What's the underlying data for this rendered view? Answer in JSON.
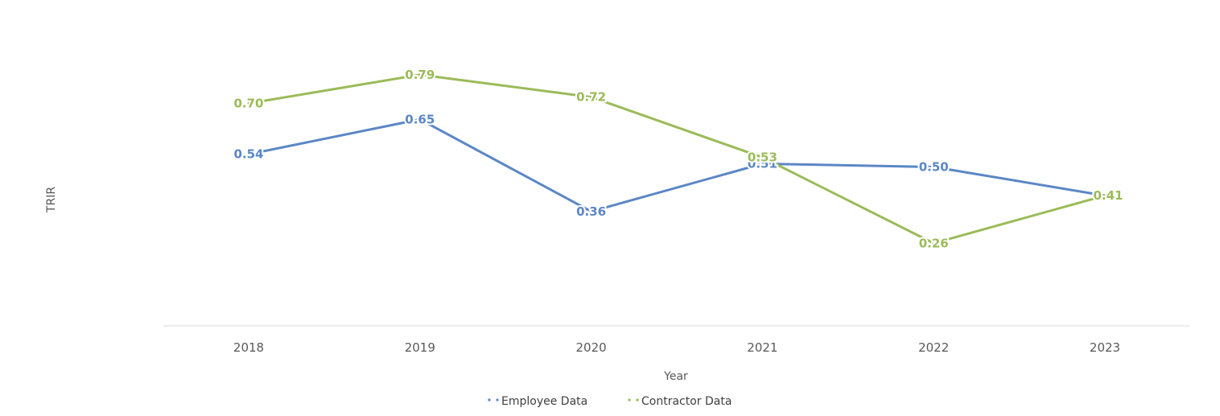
{
  "chart_data": {
    "type": "line",
    "title": "",
    "xlabel": "Year",
    "ylabel": "TRIR",
    "categories": [
      "2018",
      "2019",
      "2020",
      "2021",
      "2022",
      "2023"
    ],
    "ylim": [
      0,
      1
    ],
    "grid": false,
    "legend_position": "bottom",
    "series": [
      {
        "name": "Employee Data",
        "color": "#5b87c5",
        "values": [
          0.54,
          0.65,
          0.36,
          0.51,
          0.5,
          0.41
        ],
        "labels": [
          "0.54",
          "0.65",
          "0.36",
          "0.51",
          "0.50",
          "0.41"
        ]
      },
      {
        "name": "Contractor Data",
        "color": "#9bbb59",
        "values": [
          0.7,
          0.79,
          0.72,
          0.53,
          0.26,
          0.41
        ],
        "labels": [
          "0.70",
          "0.79",
          "0.72",
          "0.53",
          "0.26",
          "0.41"
        ]
      }
    ]
  }
}
